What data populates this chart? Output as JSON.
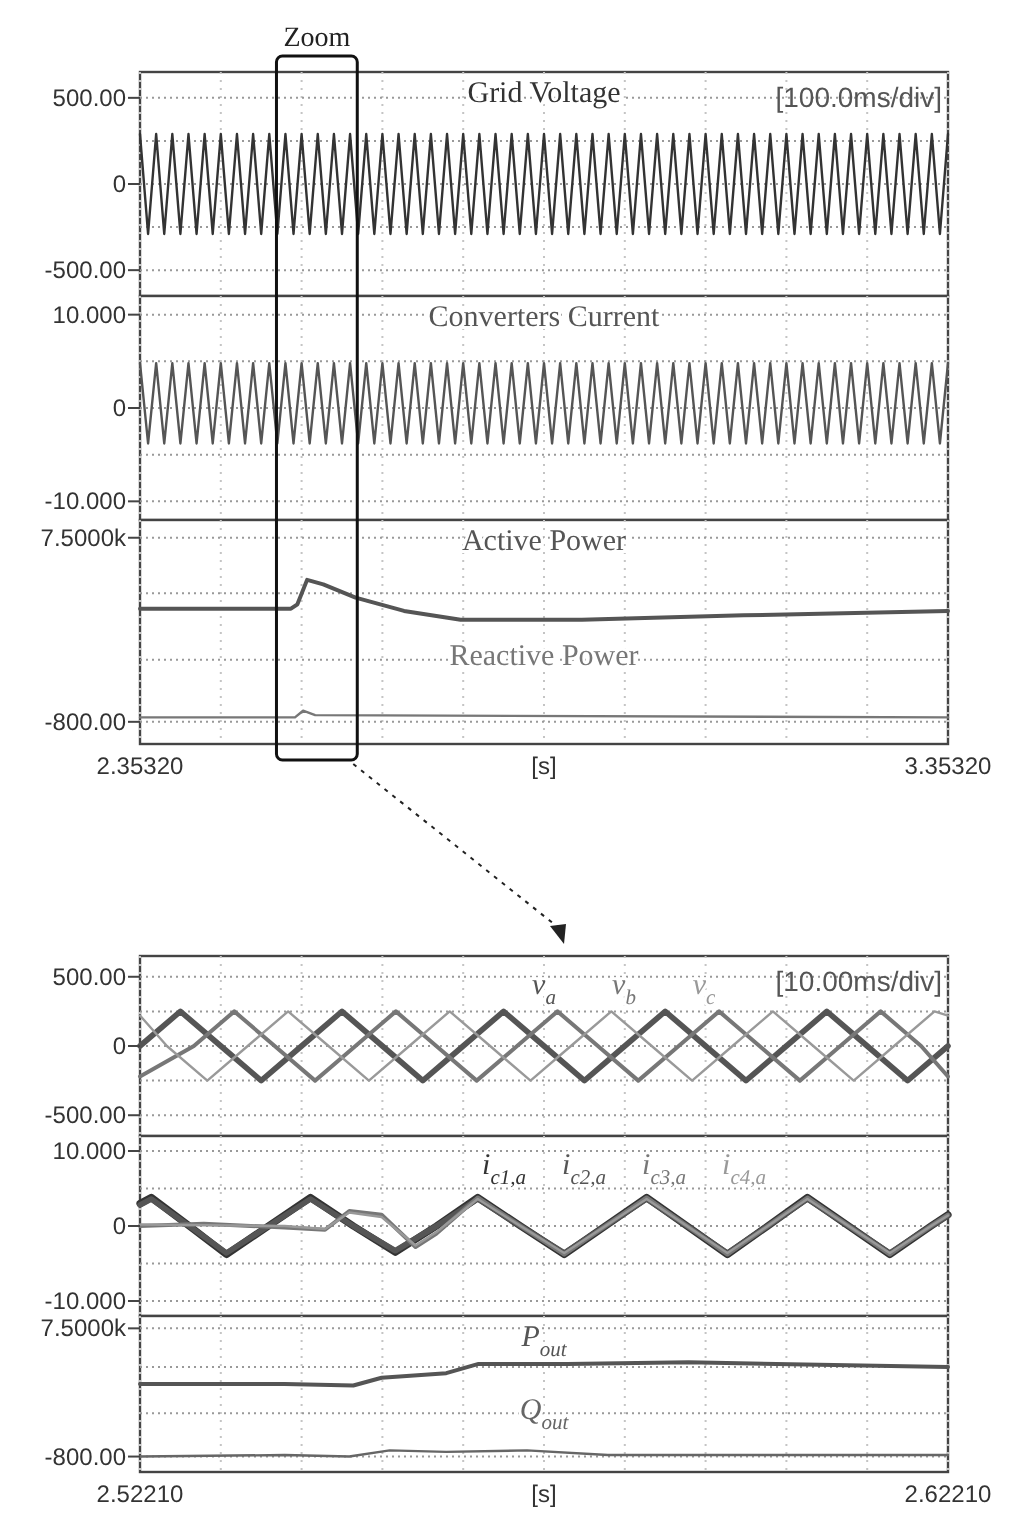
{
  "chart_data": [
    {
      "type": "line",
      "annotations": [
        "Zoom",
        "[100.0ms/div]"
      ],
      "xlim": [
        2.3532,
        3.3532
      ],
      "ylim": [
        -650,
        650
      ],
      "xticks": [
        {
          "value": 2.3532,
          "label": null
        },
        {
          "value": 2.4532,
          "label": null
        },
        {
          "value": 2.5532,
          "label": null
        },
        {
          "value": 2.6532,
          "label": null
        },
        {
          "value": 2.7532,
          "label": null
        },
        {
          "value": 2.8532,
          "label": null
        },
        {
          "value": 2.9532,
          "label": null
        },
        {
          "value": 3.0532,
          "label": null
        },
        {
          "value": 3.1532,
          "label": null
        },
        {
          "value": 3.2532,
          "label": null
        },
        {
          "value": 3.3532,
          "label": null
        }
      ],
      "yticks": [
        {
          "value": 500,
          "label": "500.00"
        },
        {
          "value": 250,
          "label": null
        },
        {
          "value": 0,
          "label": "0"
        },
        {
          "value": -250,
          "label": null
        },
        {
          "value": -500,
          "label": "-500.00"
        }
      ],
      "tick_labels": "y",
      "grid": true,
      "x": [
        2.3532,
        2.3632,
        2.3732,
        2.3832,
        2.3932,
        2.4032,
        2.4132,
        2.4232,
        2.4332,
        2.4432,
        2.4532,
        2.4632,
        2.4732,
        2.4832,
        2.4932,
        2.5032,
        2.5132,
        2.5232,
        2.5332,
        2.5432,
        2.5532,
        2.5632,
        2.5732,
        2.5832,
        2.5932,
        2.6032,
        2.6132,
        2.6232,
        2.6332,
        2.6432,
        2.6532,
        2.6632,
        2.6732,
        2.6832,
        2.6932,
        2.7032,
        2.7132,
        2.7232,
        2.7332,
        2.7432,
        2.7532,
        2.7632,
        2.7732,
        2.7832,
        2.7932,
        2.8032,
        2.8132,
        2.8232,
        2.8332,
        2.8432,
        2.8532,
        2.8632,
        2.8732,
        2.8832,
        2.8932,
        2.9032,
        2.9132,
        2.9232,
        2.9332,
        2.9432,
        2.9532,
        2.9632,
        2.9732,
        2.9832,
        2.9932,
        3.0032,
        3.0132,
        3.0232,
        3.0332,
        3.0432,
        3.0532,
        3.0632,
        3.0732,
        3.0832,
        3.0932,
        3.1032,
        3.1132,
        3.1232,
        3.1332,
        3.1432,
        3.1532,
        3.1632,
        3.1732,
        3.1832,
        3.1932,
        3.2032,
        3.2132,
        3.2232,
        3.2332,
        3.2432,
        3.2532,
        3.2632,
        3.2732,
        3.2832,
        3.2932,
        3.3032,
        3.3132,
        3.3232,
        3.3332,
        3.3432,
        3.3532
      ],
      "series": [
        {
          "name": "Grid Voltage",
          "color": "#333333",
          "values": [
            290,
            -290,
            290,
            -290,
            290,
            -290,
            290,
            -290,
            290,
            -290,
            290,
            -290,
            290,
            -290,
            290,
            -290,
            290,
            -290,
            290,
            -290,
            290,
            -290,
            290,
            -290,
            290,
            -290,
            290,
            -290,
            290,
            -290,
            290,
            -290,
            290,
            -290,
            290,
            -290,
            290,
            -290,
            290,
            -290,
            290,
            -290,
            290,
            -290,
            290,
            -290,
            290,
            -290,
            290,
            -290,
            290,
            -290,
            290,
            -290,
            290,
            -290,
            290,
            -290,
            290,
            -290,
            290,
            -290,
            290,
            -290,
            290,
            -290,
            290,
            -290,
            290,
            -290,
            290,
            -290,
            290,
            -290,
            290,
            -290,
            290,
            -290,
            290,
            -290,
            290,
            -290,
            290,
            -290,
            290,
            -290,
            290,
            -290,
            290,
            -290,
            290,
            -290,
            290,
            -290,
            290,
            -290,
            290,
            -290,
            290,
            -290,
            290
          ]
        }
      ]
    },
    {
      "type": "line",
      "xlim": [
        2.3532,
        3.3532
      ],
      "ylim": [
        -12,
        12
      ],
      "xticks": [
        {
          "value": 2.3532,
          "label": null
        },
        {
          "value": 2.4532,
          "label": null
        },
        {
          "value": 2.5532,
          "label": null
        },
        {
          "value": 2.6532,
          "label": null
        },
        {
          "value": 2.7532,
          "label": null
        },
        {
          "value": 2.8532,
          "label": null
        },
        {
          "value": 2.9532,
          "label": null
        },
        {
          "value": 3.0532,
          "label": null
        },
        {
          "value": 3.1532,
          "label": null
        },
        {
          "value": 3.2532,
          "label": null
        },
        {
          "value": 3.3532,
          "label": null
        }
      ],
      "yticks": [
        {
          "value": 10,
          "label": "10.000"
        },
        {
          "value": 5,
          "label": null
        },
        {
          "value": 0,
          "label": "0"
        },
        {
          "value": -5,
          "label": null
        },
        {
          "value": -10,
          "label": "-10.000"
        }
      ],
      "tick_labels": "y",
      "grid": true,
      "x": [
        2.3532,
        2.3632,
        2.3732,
        2.3832,
        2.3932,
        2.4032,
        2.4132,
        2.4232,
        2.4332,
        2.4432,
        2.4532,
        2.4632,
        2.4732,
        2.4832,
        2.4932,
        2.5032,
        2.5132,
        2.5232,
        2.5332,
        2.5432,
        2.5532,
        2.5632,
        2.5732,
        2.5832,
        2.5932,
        2.6032,
        2.6132,
        2.6232,
        2.6332,
        2.6432,
        2.6532,
        2.6632,
        2.6732,
        2.6832,
        2.6932,
        2.7032,
        2.7132,
        2.7232,
        2.7332,
        2.7432,
        2.7532,
        2.7632,
        2.7732,
        2.7832,
        2.7932,
        2.8032,
        2.8132,
        2.8232,
        2.8332,
        2.8432,
        2.8532,
        2.8632,
        2.8732,
        2.8832,
        2.8932,
        2.9032,
        2.9132,
        2.9232,
        2.9332,
        2.9432,
        2.9532,
        2.9632,
        2.9732,
        2.9832,
        2.9932,
        3.0032,
        3.0132,
        3.0232,
        3.0332,
        3.0432,
        3.0532,
        3.0632,
        3.0732,
        3.0832,
        3.0932,
        3.1032,
        3.1132,
        3.1232,
        3.1332,
        3.1432,
        3.1532,
        3.1632,
        3.1732,
        3.1832,
        3.1932,
        3.2032,
        3.2132,
        3.2232,
        3.2332,
        3.2432,
        3.2532,
        3.2632,
        3.2732,
        3.2832,
        3.2932,
        3.3032,
        3.3132,
        3.3232,
        3.3332,
        3.3432,
        3.3532
      ],
      "series": [
        {
          "name": "Converters Current",
          "color": "#555555",
          "values": [
            4.8,
            -3.8,
            4.8,
            -3.8,
            4.8,
            -3.8,
            4.8,
            -3.8,
            4.8,
            -3.8,
            4.8,
            -3.8,
            4.8,
            -3.8,
            4.8,
            -3.8,
            4.8,
            -3.8,
            4.8,
            -3.8,
            4.8,
            -3.8,
            4.8,
            -3.8,
            4.8,
            -3.8,
            4.8,
            -3.8,
            4.8,
            -3.8,
            4.8,
            -3.8,
            4.8,
            -3.8,
            4.8,
            -3.8,
            4.8,
            -3.8,
            4.8,
            -3.8,
            4.8,
            -3.8,
            4.8,
            -3.8,
            4.8,
            -3.8,
            4.8,
            -3.8,
            4.8,
            -3.8,
            4.8,
            -3.8,
            4.8,
            -3.8,
            4.8,
            -3.8,
            4.8,
            -3.8,
            4.8,
            -3.8,
            4.8,
            -3.8,
            4.8,
            -3.8,
            4.8,
            -3.8,
            4.8,
            -3.8,
            4.8,
            -3.8,
            4.8,
            -3.8,
            4.8,
            -3.8,
            4.8,
            -3.8,
            4.8,
            -3.8,
            4.8,
            -3.8,
            4.8,
            -3.8,
            4.8,
            -3.8,
            4.8,
            -3.8,
            4.8,
            -3.8,
            4.8,
            -3.8,
            4.8,
            -3.8,
            4.8,
            -3.8,
            4.8,
            -3.8,
            4.8,
            -3.8,
            4.8,
            -3.8,
            4.8
          ]
        }
      ]
    },
    {
      "type": "line",
      "xlabel": "[s]",
      "xlim": [
        2.3532,
        3.3532
      ],
      "ylim": [
        -1800,
        8300
      ],
      "xticks": [
        {
          "value": 2.3532,
          "label": "2.35320"
        },
        {
          "value": 2.4532,
          "label": null
        },
        {
          "value": 2.5532,
          "label": null
        },
        {
          "value": 2.6532,
          "label": null
        },
        {
          "value": 2.7532,
          "label": null
        },
        {
          "value": 2.8532,
          "label": null
        },
        {
          "value": 2.9532,
          "label": null
        },
        {
          "value": 3.0532,
          "label": null
        },
        {
          "value": 3.1532,
          "label": null
        },
        {
          "value": 3.2532,
          "label": null
        },
        {
          "value": 3.3532,
          "label": "3.35320"
        }
      ],
      "yticks": [
        {
          "value": 7500,
          "label": "7.5000k"
        },
        {
          "value": 5000,
          "label": null
        },
        {
          "value": 2000,
          "label": null
        },
        {
          "value": -800,
          "label": "-800.00"
        }
      ],
      "grid": true,
      "series": [
        {
          "name": "Active Power",
          "color": "#555555",
          "x": [
            2.3532,
            2.54,
            2.548,
            2.56,
            2.58,
            2.62,
            2.68,
            2.75,
            2.9,
            3.1,
            3.3532
          ],
          "values": [
            4300,
            4300,
            4500,
            5600,
            5400,
            4800,
            4200,
            3800,
            3800,
            4000,
            4200
          ]
        },
        {
          "name": "Reactive Power",
          "color": "#777777",
          "x": [
            2.3532,
            2.545,
            2.555,
            2.57,
            3.3532
          ],
          "values": [
            -600,
            -600,
            -300,
            -500,
            -600
          ]
        }
      ]
    },
    {
      "type": "line",
      "annotations": [
        "[10.00ms/div]"
      ],
      "xlim": [
        2.5221,
        2.6221
      ],
      "ylim": [
        -650,
        650
      ],
      "xticks": [
        {
          "value": 2.5221,
          "label": null
        },
        {
          "value": 2.5321,
          "label": null
        },
        {
          "value": 2.5421,
          "label": null
        },
        {
          "value": 2.5521,
          "label": null
        },
        {
          "value": 2.5621,
          "label": null
        },
        {
          "value": 2.5721,
          "label": null
        },
        {
          "value": 2.5821,
          "label": null
        },
        {
          "value": 2.5921,
          "label": null
        },
        {
          "value": 2.6021,
          "label": null
        },
        {
          "value": 2.6121,
          "label": null
        },
        {
          "value": 2.6221,
          "label": null
        }
      ],
      "yticks": [
        {
          "value": 500,
          "label": "500.00"
        },
        {
          "value": 250,
          "label": null
        },
        {
          "value": 0,
          "label": "0"
        },
        {
          "value": -250,
          "label": null
        },
        {
          "value": -500,
          "label": "-500.00"
        }
      ],
      "tick_labels": "y",
      "grid": true,
      "series": [
        {
          "name": "v$_{a}$",
          "color": "#555555",
          "x": [
            2.5221,
            2.5271,
            2.5321,
            2.5371,
            2.5421,
            2.5471,
            2.5521,
            2.5571,
            2.5621,
            2.5671,
            2.5721,
            2.5771,
            2.5821,
            2.5871,
            2.5921,
            2.5971,
            2.6021,
            2.6071,
            2.6121,
            2.6171,
            2.6221
          ],
          "values": [
            0,
            250,
            0,
            -250,
            0,
            250,
            0,
            -250,
            0,
            250,
            0,
            -250,
            0,
            250,
            0,
            -250,
            0,
            250,
            0,
            -250,
            0
          ]
        },
        {
          "name": "v$_{b}$",
          "color": "#777777",
          "x": [
            2.5221,
            2.52877,
            2.53377,
            2.53877,
            2.54377,
            2.54877,
            2.55377,
            2.55877,
            2.56377,
            2.56877,
            2.57377,
            2.57877,
            2.58377,
            2.58877,
            2.59377,
            2.59877,
            2.60377,
            2.60877,
            2.61377,
            2.61877,
            2.6221
          ],
          "values": [
            -220,
            0,
            250,
            0,
            -250,
            0,
            250,
            0,
            -250,
            0,
            250,
            0,
            -250,
            0,
            250,
            0,
            -250,
            0,
            250,
            0,
            -220
          ]
        },
        {
          "name": "v$_{c}$",
          "color": "#999999",
          "x": [
            2.5221,
            2.52543,
            2.53043,
            2.53543,
            2.54043,
            2.54543,
            2.55043,
            2.55543,
            2.56043,
            2.56543,
            2.57043,
            2.57543,
            2.58043,
            2.58543,
            2.59043,
            2.59543,
            2.60043,
            2.60543,
            2.61043,
            2.61543,
            2.62043,
            2.6221
          ],
          "values": [
            220,
            0,
            -250,
            0,
            250,
            0,
            -250,
            0,
            250,
            0,
            -250,
            0,
            250,
            0,
            -250,
            0,
            250,
            0,
            -250,
            0,
            250,
            220
          ]
        }
      ]
    },
    {
      "type": "line",
      "xlim": [
        2.5221,
        2.6221
      ],
      "ylim": [
        -12,
        12
      ],
      "xticks": [
        {
          "value": 2.5221,
          "label": null
        },
        {
          "value": 2.5321,
          "label": null
        },
        {
          "value": 2.5421,
          "label": null
        },
        {
          "value": 2.5521,
          "label": null
        },
        {
          "value": 2.5621,
          "label": null
        },
        {
          "value": 2.5721,
          "label": null
        },
        {
          "value": 2.5821,
          "label": null
        },
        {
          "value": 2.5921,
          "label": null
        },
        {
          "value": 2.6021,
          "label": null
        },
        {
          "value": 2.6121,
          "label": null
        },
        {
          "value": 2.6221,
          "label": null
        }
      ],
      "yticks": [
        {
          "value": 10,
          "label": "10.000"
        },
        {
          "value": 5,
          "label": null
        },
        {
          "value": 0,
          "label": "0"
        },
        {
          "value": -5,
          "label": null
        },
        {
          "value": -10,
          "label": "-10.000"
        }
      ],
      "tick_labels": "y",
      "grid": true,
      "series": [
        {
          "name": "i$_{c1,a}$",
          "color": "#333333",
          "x": [
            2.5221,
            2.5235,
            2.5282,
            2.5328,
            2.538,
            2.5432,
            2.5485,
            2.5537,
            2.5588,
            2.5639,
            2.5692,
            2.5746,
            2.5797,
            2.5848,
            2.5898,
            2.5948,
            2.5998,
            2.6047,
            2.6098,
            2.6149,
            2.62,
            2.6221
          ],
          "values": [
            3,
            3.8,
            0,
            -3.8,
            0,
            3.8,
            0,
            -3.5,
            0,
            3.8,
            0,
            -3.8,
            0,
            3.8,
            0,
            -3.8,
            0,
            3.8,
            0,
            -3.8,
            0,
            1.5
          ]
        },
        {
          "name": "i$_{c2,a}$",
          "color": "#555555",
          "x": [
            2.5221,
            2.5235,
            2.5282,
            2.5328,
            2.538,
            2.5432,
            2.5485,
            2.5537,
            2.5588,
            2.5639,
            2.5692,
            2.5746,
            2.5797,
            2.5848,
            2.5898,
            2.5948,
            2.5998,
            2.6047,
            2.6098,
            2.6149,
            2.62,
            2.6221
          ],
          "values": [
            2.8,
            3.6,
            0,
            -3.6,
            0,
            3.6,
            0,
            -3.3,
            0,
            3.6,
            0,
            -3.6,
            0,
            3.6,
            0,
            -3.6,
            0,
            3.6,
            0,
            -3.6,
            0,
            1.4
          ]
        },
        {
          "name": "i$_{c3,a}$",
          "color": "#777777",
          "x": [
            2.5221,
            2.53,
            2.54,
            2.545,
            2.548,
            2.552,
            2.5562,
            2.5588,
            2.5639,
            2.5692,
            2.5746,
            2.5797,
            2.5848,
            2.5898,
            2.5948,
            2.5998,
            2.6047,
            2.6098,
            2.6149,
            2.62,
            2.6221
          ],
          "values": [
            0,
            0.3,
            -0.2,
            -0.5,
            2,
            1.5,
            -2.8,
            -1,
            3.8,
            0,
            -3.8,
            0,
            3.8,
            0,
            -3.8,
            0,
            3.8,
            0,
            -3.8,
            0,
            1.5
          ]
        },
        {
          "name": "i$_{c4,a}$",
          "color": "#999999",
          "x": [
            2.5221,
            2.53,
            2.54,
            2.545,
            2.548,
            2.552,
            2.5562,
            2.5588,
            2.5639,
            2.5692,
            2.5746,
            2.5797,
            2.5848,
            2.5898,
            2.5948,
            2.5998,
            2.6047,
            2.6098,
            2.6149,
            2.62,
            2.6221
          ],
          "values": [
            0.2,
            0.1,
            0,
            -0.4,
            1.8,
            1.2,
            -2.6,
            -0.8,
            3.6,
            0,
            -3.6,
            0,
            3.6,
            0,
            -3.6,
            0,
            3.6,
            0,
            -3.6,
            0,
            1.4
          ]
        }
      ]
    },
    {
      "type": "line",
      "xlabel": "[s]",
      "xlim": [
        2.5221,
        2.6221
      ],
      "ylim": [
        -1800,
        8300
      ],
      "xticks": [
        {
          "value": 2.5221,
          "label": "2.52210"
        },
        {
          "value": 2.5321,
          "label": null
        },
        {
          "value": 2.5421,
          "label": null
        },
        {
          "value": 2.5521,
          "label": null
        },
        {
          "value": 2.5621,
          "label": null
        },
        {
          "value": 2.5721,
          "label": null
        },
        {
          "value": 2.5821,
          "label": null
        },
        {
          "value": 2.5921,
          "label": null
        },
        {
          "value": 2.6021,
          "label": null
        },
        {
          "value": 2.6121,
          "label": null
        },
        {
          "value": 2.6221,
          "label": "2.62210"
        }
      ],
      "yticks": [
        {
          "value": 7500,
          "label": "7.5000k"
        },
        {
          "value": 5000,
          "label": null
        },
        {
          "value": 2000,
          "label": null
        },
        {
          "value": -800,
          "label": "-800.00"
        }
      ],
      "grid": true,
      "series": [
        {
          "name": "P$_{out}$",
          "color": "#555555",
          "x": [
            2.5221,
            2.54,
            2.5485,
            2.552,
            2.56,
            2.564,
            2.575,
            2.59,
            2.6221
          ],
          "values": [
            3900,
            3900,
            3800,
            4300,
            4600,
            5200,
            5200,
            5300,
            5000
          ]
        },
        {
          "name": "Q$_{out}$",
          "color": "#666666",
          "x": [
            2.5221,
            2.54,
            2.548,
            2.553,
            2.56,
            2.57,
            2.58,
            2.6221
          ],
          "values": [
            -800,
            -700,
            -800,
            -400,
            -500,
            -400,
            -700,
            -700
          ]
        }
      ]
    }
  ]
}
